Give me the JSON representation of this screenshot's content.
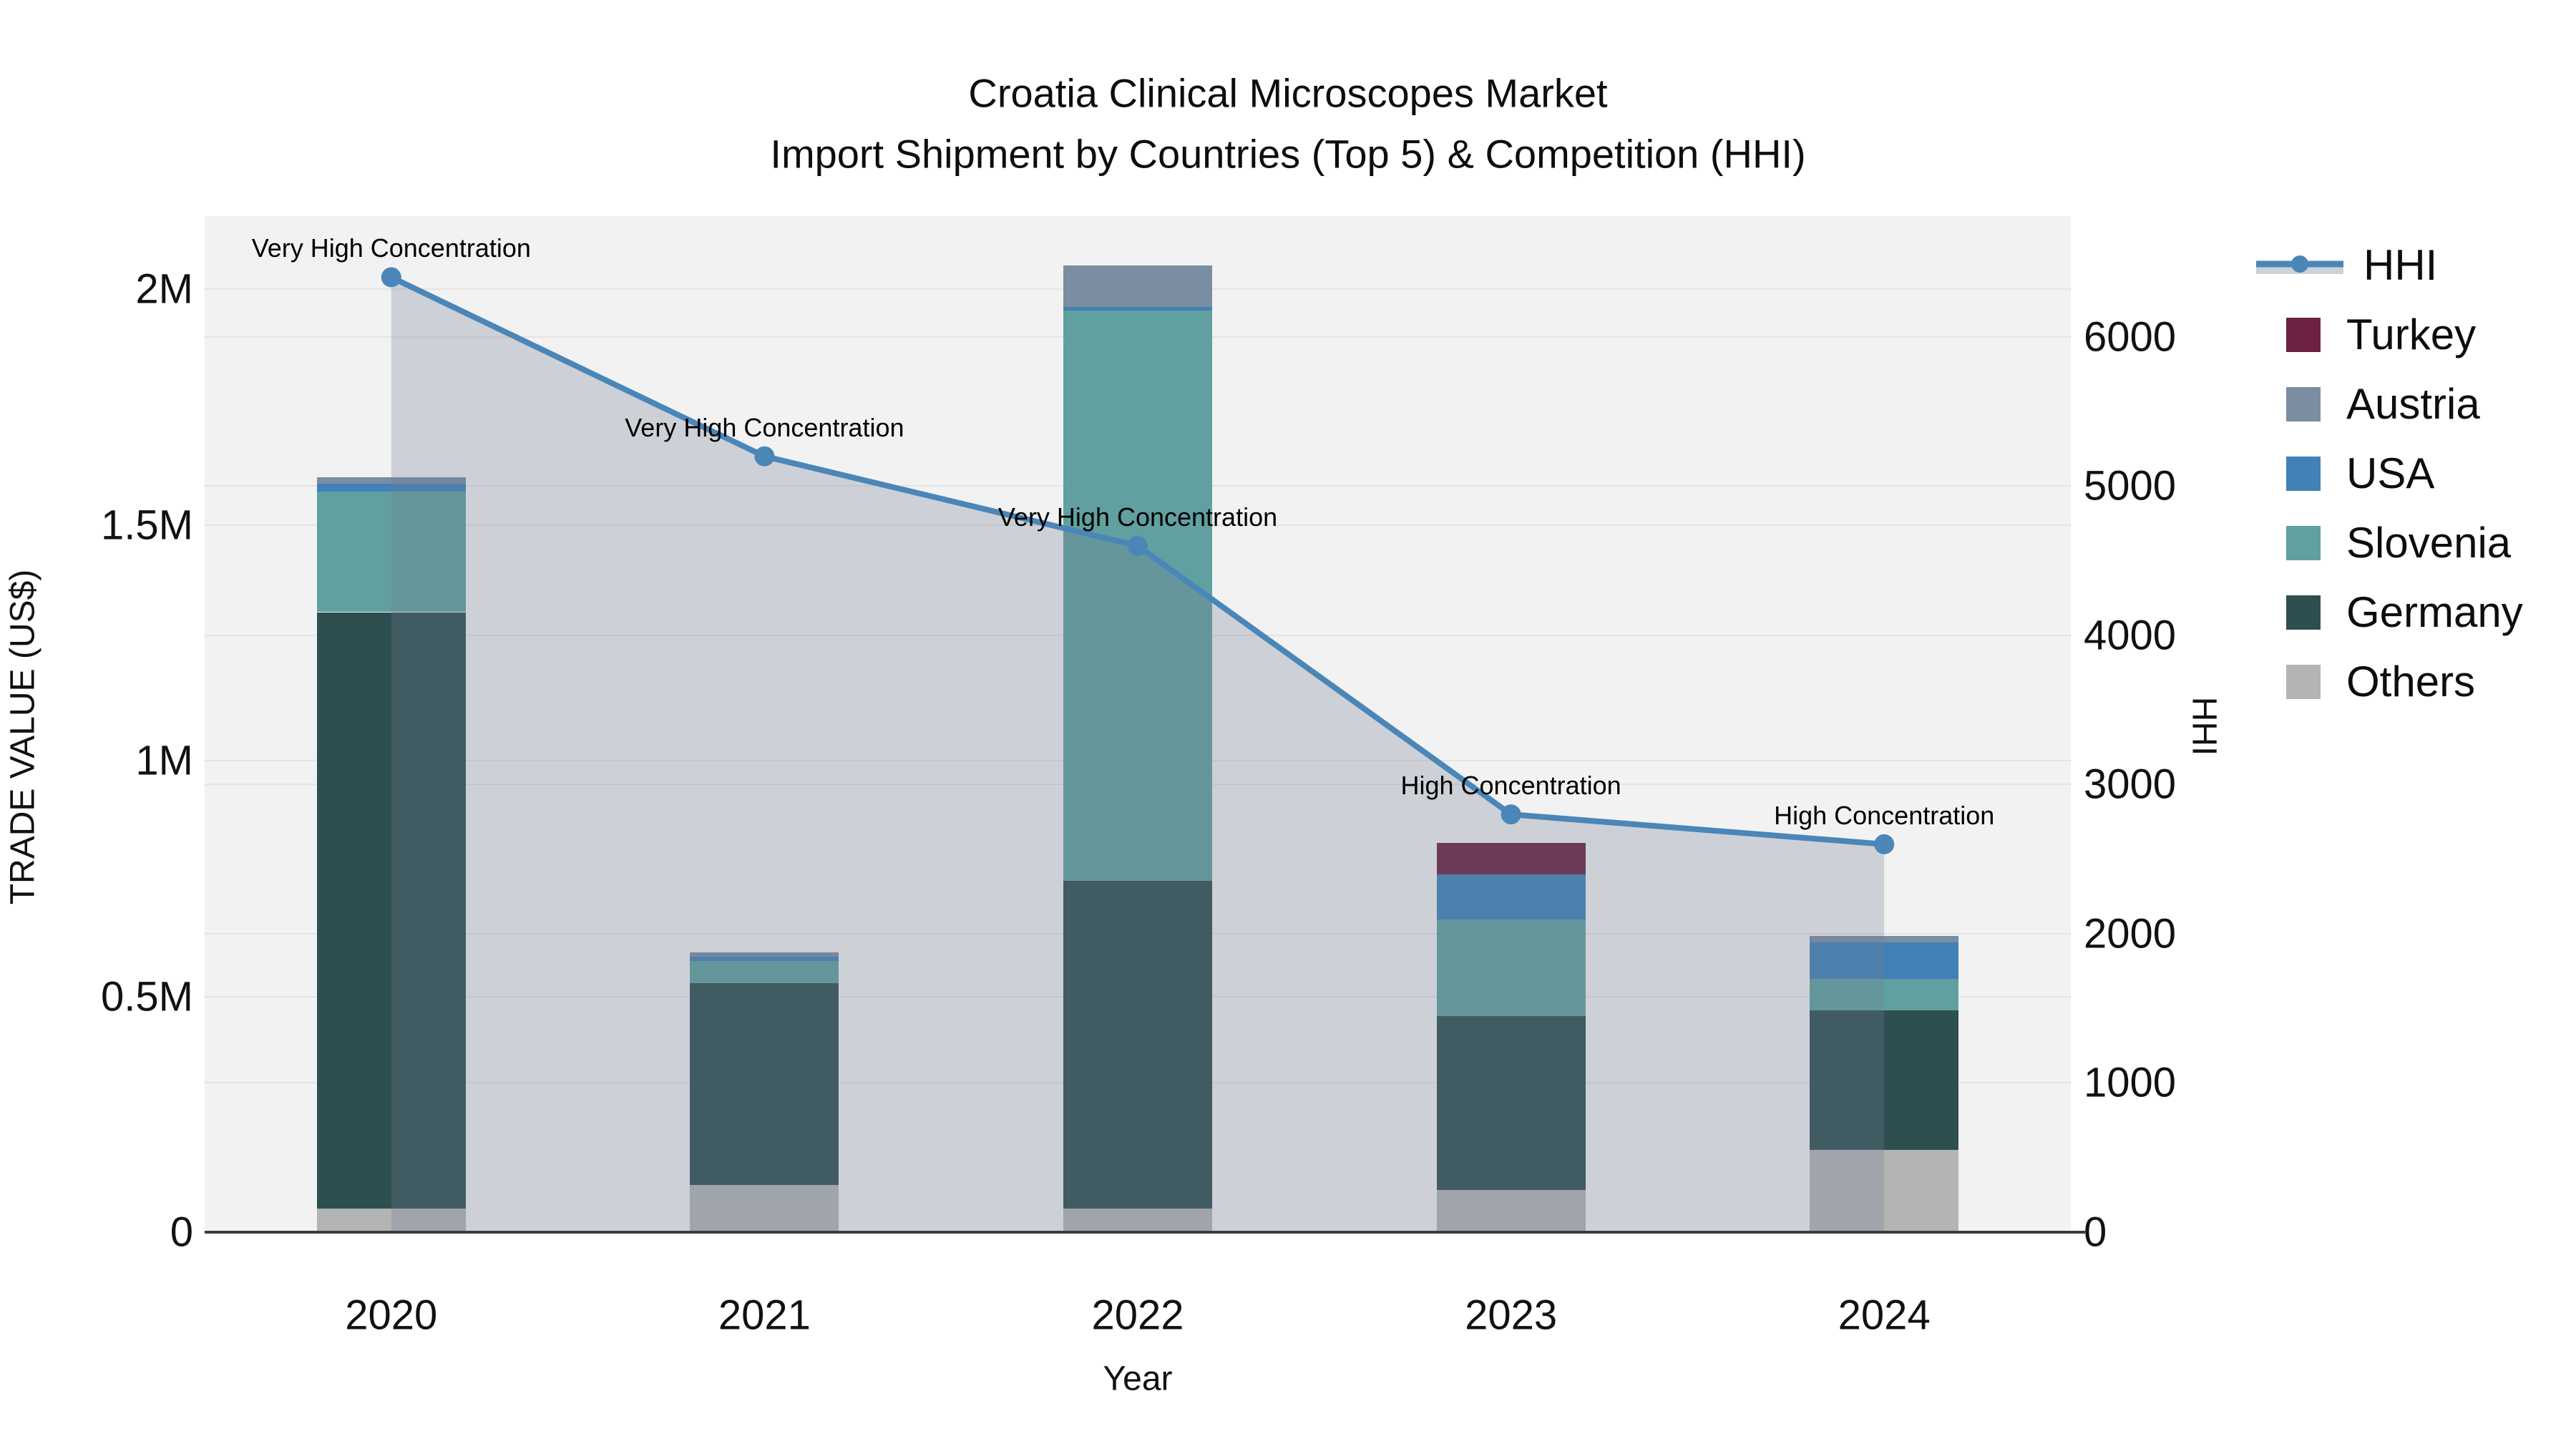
{
  "title": {
    "line1": "Croatia Clinical Microscopes Market",
    "line2": "Import Shipment by Countries (Top 5) & Competition (HHI)"
  },
  "chart_data": {
    "type": "combo-stacked-bar-line",
    "categories": [
      "2020",
      "2021",
      "2022",
      "2023",
      "2024"
    ],
    "bar_series": [
      {
        "name": "Others",
        "color": "#b2b5b4",
        "values": [
          50000,
          100000,
          50000,
          89000,
          174000
        ]
      },
      {
        "name": "Germany",
        "color": "#2e4f50",
        "values": [
          1265000,
          428000,
          695000,
          370000,
          297000
        ]
      },
      {
        "name": "Slovenia",
        "color": "#61a0a0",
        "values": [
          255000,
          47000,
          1209000,
          204000,
          66000
        ]
      },
      {
        "name": "USA",
        "color": "#4181b8",
        "values": [
          17000,
          10000,
          9000,
          96000,
          78000
        ]
      },
      {
        "name": "Austria",
        "color": "#7b8da1",
        "values": [
          14000,
          8000,
          88000,
          0,
          13000
        ]
      },
      {
        "name": "Turkey",
        "color": "#6d2243",
        "values": [
          0,
          0,
          0,
          66000,
          0
        ]
      }
    ],
    "line_series": {
      "name": "HHI",
      "color": "#4a86b8",
      "area_fill": "rgba(110,126,148,0.28)",
      "values": [
        6400,
        5200,
        4600,
        2800,
        2600
      ]
    },
    "annotations": [
      "Very High Concentration",
      "Very High Concentration",
      "Very High Concentration",
      "High Concentration",
      "High Concentration"
    ],
    "y_left": {
      "label": "TRADE VALUE (US$)",
      "ticks": [
        {
          "value": 0,
          "label": "0"
        },
        {
          "value": 500000,
          "label": "0.5M"
        },
        {
          "value": 1000000,
          "label": "1M"
        },
        {
          "value": 1500000,
          "label": "1.5M"
        },
        {
          "value": 2000000,
          "label": "2M"
        }
      ],
      "max": 2155000
    },
    "y_right": {
      "label": "HHI",
      "ticks": [
        {
          "value": 0,
          "label": "0"
        },
        {
          "value": 1000,
          "label": "1000"
        },
        {
          "value": 2000,
          "label": "2000"
        },
        {
          "value": 3000,
          "label": "3000"
        },
        {
          "value": 4000,
          "label": "4000"
        },
        {
          "value": 5000,
          "label": "5000"
        },
        {
          "value": 6000,
          "label": "6000"
        }
      ],
      "max": 6810
    },
    "x_label": "Year",
    "legend": [
      {
        "glyph": "line",
        "name": "HHI"
      },
      {
        "glyph": "box",
        "name": "Turkey"
      },
      {
        "glyph": "box",
        "name": "Austria"
      },
      {
        "glyph": "box",
        "name": "USA"
      },
      {
        "glyph": "box",
        "name": "Slovenia"
      },
      {
        "glyph": "box",
        "name": "Germany"
      },
      {
        "glyph": "box",
        "name": "Others"
      }
    ],
    "grid": true,
    "plot_background": "#f2f2f2"
  }
}
